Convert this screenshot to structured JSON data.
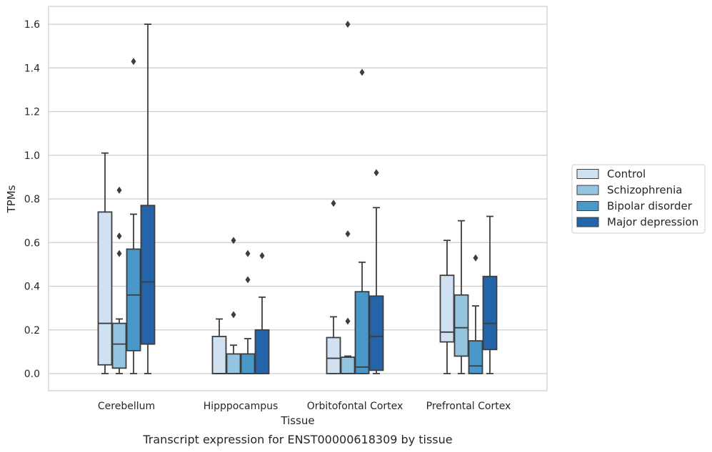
{
  "chart_data": {
    "type": "box",
    "caption": "Transcript expression for ENST00000618309 by tissue",
    "xlabel": "Tissue",
    "ylabel": "TPMs",
    "ylim": [
      -0.08,
      1.68
    ],
    "yticks": [
      "0.0",
      "0.2",
      "0.4",
      "0.6",
      "0.8",
      "1.0",
      "1.2",
      "1.4",
      "1.6"
    ],
    "grid": true,
    "legend_position": "right-outside",
    "categories": [
      "Cerebellum",
      "Hipppocampus",
      "Orbitofontal Cortex",
      "Prefrontal Cortex"
    ],
    "series": [
      {
        "name": "Control",
        "color": "#d0e1f2",
        "boxes": [
          {
            "q1": 0.04,
            "median": 0.23,
            "q3": 0.74,
            "whisker_low": 0.0,
            "whisker_high": 1.01,
            "outliers": []
          },
          {
            "q1": 0.0,
            "median": 0.0,
            "q3": 0.17,
            "whisker_low": 0.0,
            "whisker_high": 0.25,
            "outliers": []
          },
          {
            "q1": 0.0,
            "median": 0.07,
            "q3": 0.165,
            "whisker_low": 0.0,
            "whisker_high": 0.26,
            "outliers": [
              0.78
            ]
          },
          {
            "q1": 0.145,
            "median": 0.19,
            "q3": 0.45,
            "whisker_low": 0.0,
            "whisker_high": 0.61,
            "outliers": []
          }
        ]
      },
      {
        "name": "Schizophrenia",
        "color": "#94c4df",
        "boxes": [
          {
            "q1": 0.025,
            "median": 0.135,
            "q3": 0.23,
            "whisker_low": 0.0,
            "whisker_high": 0.25,
            "outliers": [
              0.55,
              0.63,
              0.84
            ]
          },
          {
            "q1": 0.0,
            "median": 0.0,
            "q3": 0.09,
            "whisker_low": 0.0,
            "whisker_high": 0.13,
            "outliers": [
              0.27,
              0.61
            ]
          },
          {
            "q1": 0.0,
            "median": 0.0,
            "q3": 0.075,
            "whisker_low": 0.0,
            "whisker_high": 0.08,
            "outliers": [
              0.24,
              0.64,
              1.6
            ]
          },
          {
            "q1": 0.08,
            "median": 0.21,
            "q3": 0.36,
            "whisker_low": 0.0,
            "whisker_high": 0.7,
            "outliers": []
          }
        ]
      },
      {
        "name": "Bipolar disorder",
        "color": "#4a98c9",
        "boxes": [
          {
            "q1": 0.105,
            "median": 0.36,
            "q3": 0.57,
            "whisker_low": 0.0,
            "whisker_high": 0.73,
            "outliers": [
              1.43
            ]
          },
          {
            "q1": 0.0,
            "median": 0.0,
            "q3": 0.09,
            "whisker_low": 0.0,
            "whisker_high": 0.16,
            "outliers": [
              0.43,
              0.55
            ]
          },
          {
            "q1": 0.0,
            "median": 0.03,
            "q3": 0.375,
            "whisker_low": 0.0,
            "whisker_high": 0.51,
            "outliers": [
              1.38
            ]
          },
          {
            "q1": 0.0,
            "median": 0.035,
            "q3": 0.15,
            "whisker_low": 0.0,
            "whisker_high": 0.31,
            "outliers": [
              0.53
            ]
          }
        ]
      },
      {
        "name": "Major depression",
        "color": "#2464a9",
        "boxes": [
          {
            "q1": 0.135,
            "median": 0.42,
            "q3": 0.77,
            "whisker_low": 0.0,
            "whisker_high": 1.6,
            "outliers": []
          },
          {
            "q1": 0.0,
            "median": 0.0,
            "q3": 0.2,
            "whisker_low": 0.0,
            "whisker_high": 0.35,
            "outliers": [
              0.54
            ]
          },
          {
            "q1": 0.015,
            "median": 0.17,
            "q3": 0.355,
            "whisker_low": 0.0,
            "whisker_high": 0.76,
            "outliers": [
              0.92
            ]
          },
          {
            "q1": 0.11,
            "median": 0.23,
            "q3": 0.445,
            "whisker_low": 0.0,
            "whisker_high": 0.72,
            "outliers": []
          }
        ]
      }
    ]
  }
}
